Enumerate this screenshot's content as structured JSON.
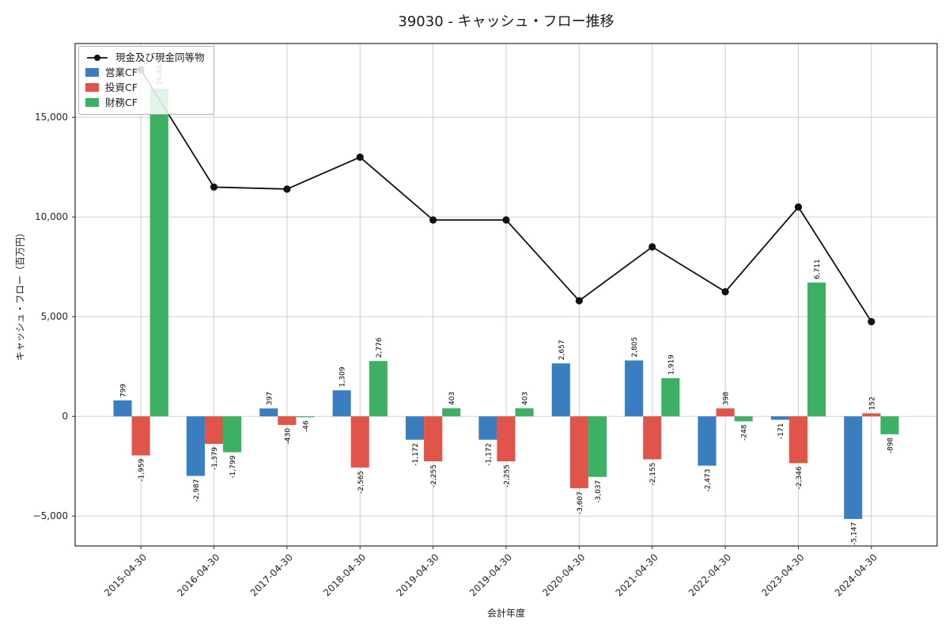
{
  "page": {
    "background": "#ffffff"
  },
  "chart": {
    "title": "39030 - キャッシュ・フロー推移",
    "xlabel": "会計年度",
    "ylabel": "キャッシュ・フロー（百万円）"
  },
  "legend": {
    "items": [
      {
        "label": "現金及び現金同等物",
        "type": "line",
        "color": "#111111"
      },
      {
        "label": "営業CF",
        "type": "bar",
        "color": "#3a7ebf"
      },
      {
        "label": "投資CF",
        "type": "bar",
        "color": "#e0544a"
      },
      {
        "label": "財務CF",
        "type": "bar",
        "color": "#3cb164"
      }
    ]
  },
  "chart_data": {
    "type": "bar",
    "title": "39030 - キャッシュ・フロー推移",
    "xlabel": "会計年度",
    "ylabel": "キャッシュ・フロー（百万円）",
    "categories": [
      "2015-04-30",
      "2016-04-30",
      "2017-04-30",
      "2018-04-30",
      "2019-04-30",
      "2019-04-30",
      "2020-04-30",
      "2021-04-30",
      "2022-04-30",
      "2023-04-30",
      "2024-04-30"
    ],
    "series": [
      {
        "name": "営業CF",
        "kind": "bar",
        "color": "#3a7ebf",
        "values": [
          799,
          -2987,
          397,
          1309,
          -1172,
          -1172,
          2657,
          2805,
          -2473,
          -171,
          -5147
        ]
      },
      {
        "name": "投資CF",
        "kind": "bar",
        "color": "#e0544a",
        "values": [
          -1959,
          -1379,
          -430,
          -2565,
          -2255,
          -2255,
          -3607,
          -2155,
          398,
          -2346,
          152
        ]
      },
      {
        "name": "財務CF",
        "kind": "bar",
        "color": "#3cb164",
        "values": [
          16444,
          -1799,
          -46,
          2776,
          403,
          403,
          -3037,
          1919,
          -248,
          6711,
          -898
        ]
      },
      {
        "name": "現金及び現金同等物",
        "kind": "line",
        "color": "#111111",
        "values": [
          17375,
          11500,
          11400,
          13000,
          9850,
          9850,
          5800,
          8500,
          6250,
          10500,
          4750
        ]
      }
    ],
    "yticks": [
      -5000,
      0,
      5000,
      10000,
      15000
    ],
    "ylim": [
      -6500,
      18700
    ],
    "grid": true,
    "legend_position": "upper left",
    "bar_label_rotation": 90
  }
}
